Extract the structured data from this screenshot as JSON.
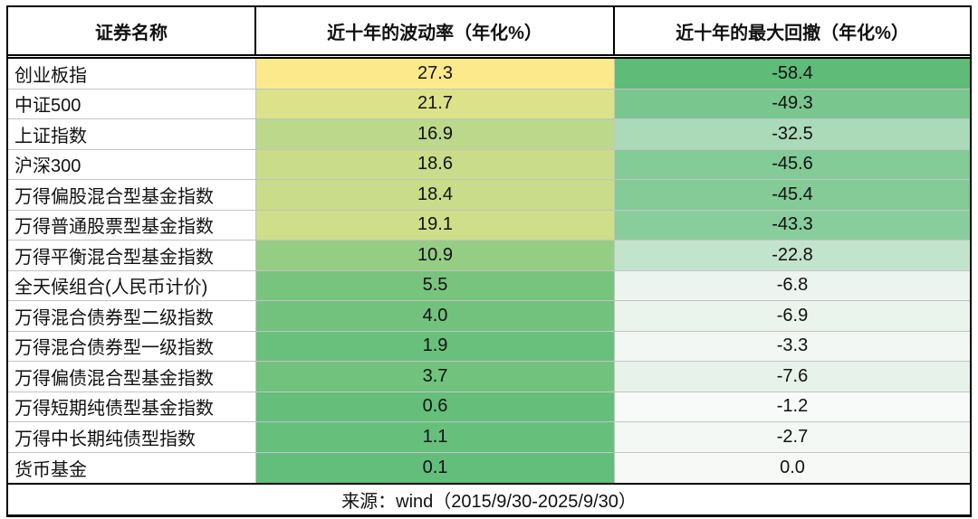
{
  "table": {
    "columns": [
      "证券名称",
      "近十年的波动率（年化%）",
      "近十年的最大回撤（年化%）"
    ],
    "rows": [
      {
        "name": "创业板指",
        "volatility": "27.3",
        "vol_color": "#FCE98B",
        "drawdown": "-58.4",
        "dd_color": "#5FBC78"
      },
      {
        "name": "中证500",
        "volatility": "21.7",
        "vol_color": "#DCE28A",
        "drawdown": "-49.3",
        "dd_color": "#79C78E"
      },
      {
        "name": "上证指数",
        "volatility": "16.9",
        "vol_color": "#BCD88B",
        "drawdown": "-32.5",
        "dd_color": "#ABDAB8"
      },
      {
        "name": "沪深300",
        "volatility": "18.6",
        "vol_color": "#C9DC89",
        "drawdown": "-45.6",
        "dd_color": "#83CB97"
      },
      {
        "name": "万得偏股混合型基金指数",
        "volatility": "18.4",
        "vol_color": "#C8DC89",
        "drawdown": "-45.4",
        "dd_color": "#84CB97"
      },
      {
        "name": "万得普通股票型基金指数",
        "volatility": "19.1",
        "vol_color": "#CFDE89",
        "drawdown": "-43.3",
        "dd_color": "#89CD9C"
      },
      {
        "name": "万得平衡混合型基金指数",
        "volatility": "10.9",
        "vol_color": "#95CD84",
        "drawdown": "-22.8",
        "dd_color": "#C2E4CD"
      },
      {
        "name": "全天候组合(人民币计价)",
        "volatility": "5.5",
        "vol_color": "#78C47E",
        "drawdown": "-6.8",
        "dd_color": "#EBF4EE"
      },
      {
        "name": "万得混合债券型二级指数",
        "volatility": "4.0",
        "vol_color": "#72C27D",
        "drawdown": "-6.9",
        "dd_color": "#EAF4ED"
      },
      {
        "name": "万得混合债券型一级指数",
        "volatility": "1.9",
        "vol_color": "#69C07C",
        "drawdown": "-3.3",
        "dd_color": "#F2F7F3"
      },
      {
        "name": "万得偏债混合型基金指数",
        "volatility": "3.7",
        "vol_color": "#70C27D",
        "drawdown": "-7.6",
        "dd_color": "#E7F2EB"
      },
      {
        "name": "万得短期纯债型基金指数",
        "volatility": "0.6",
        "vol_color": "#65BF7B",
        "drawdown": "-1.2",
        "dd_color": "#F7FAF8"
      },
      {
        "name": "万得中长期纯债型指数",
        "volatility": "1.1",
        "vol_color": "#67BF7C",
        "drawdown": "-2.7",
        "dd_color": "#F4F8F5"
      },
      {
        "name": "货币基金",
        "volatility": "0.1",
        "vol_color": "#63BE7B",
        "drawdown": "0.0",
        "dd_color": "#F6F9F6"
      }
    ],
    "source": "来源：wind（2015/9/30-2025/9/30）"
  },
  "colors": {
    "border": "#000000",
    "grid_line": "#C3C3C3",
    "scale_green": "#63BE7B",
    "scale_yellow": "#FFEB84",
    "scale_white": "#FCFCFF"
  },
  "chart_data": {
    "type": "table",
    "columns": [
      "证券名称",
      "近十年的波动率（年化%）",
      "近十年的最大回撤（年化%）"
    ],
    "rows": [
      [
        "创业板指",
        27.3,
        -58.4
      ],
      [
        "中证500",
        21.7,
        -49.3
      ],
      [
        "上证指数",
        16.9,
        -32.5
      ],
      [
        "沪深300",
        18.6,
        -45.6
      ],
      [
        "万得偏股混合型基金指数",
        18.4,
        -45.4
      ],
      [
        "万得普通股票型基金指数",
        19.1,
        -43.3
      ],
      [
        "万得平衡混合型基金指数",
        10.9,
        -22.8
      ],
      [
        "全天候组合(人民币计价)",
        5.5,
        -6.8
      ],
      [
        "万得混合债券型二级指数",
        4.0,
        -6.9
      ],
      [
        "万得混合债券型一级指数",
        1.9,
        -3.3
      ],
      [
        "万得偏债混合型基金指数",
        3.7,
        -7.6
      ],
      [
        "万得短期纯债型基金指数",
        0.6,
        -1.2
      ],
      [
        "万得中长期纯债型指数",
        1.1,
        -2.7
      ],
      [
        "货币基金",
        0.1,
        0.0
      ]
    ],
    "source": "来源：wind（2015/9/30-2025/9/30）",
    "heatmap_scales": {
      "volatility": {
        "min": 0.1,
        "max": 27.3,
        "min_color": "#63BE7B",
        "max_color": "#FFEB84"
      },
      "drawdown": {
        "min": -58.4,
        "max": 0.0,
        "min_color": "#63BE7B",
        "max_color": "#FCFCFF"
      }
    },
    "legend_position": "none",
    "grid": true
  }
}
